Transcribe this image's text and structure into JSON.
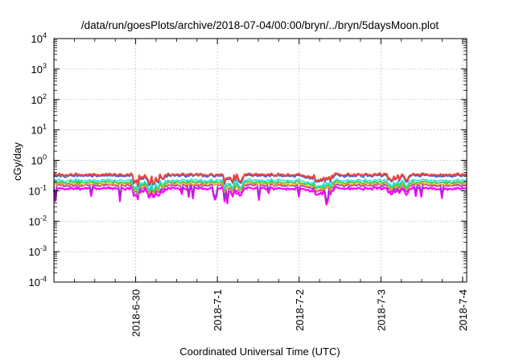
{
  "chart_data": {
    "type": "area",
    "title": "/data/run/goesPlots/archive/2018-07-04/00:00/bryn/../bryn/5daysMoon.plot",
    "xlabel": "Coordinated Universal Time (UTC)",
    "ylabel": "cGy/day",
    "yscale": "log",
    "ylim_exponents": [
      -4,
      4
    ],
    "ytick_exponents": [
      -4,
      -3,
      -2,
      -1,
      0,
      1,
      2,
      3,
      4
    ],
    "xlim_days": [
      -1.0,
      4.05
    ],
    "xticks": [
      {
        "day": 0,
        "label": "2018-6-30"
      },
      {
        "day": 1,
        "label": "2018-7-1"
      },
      {
        "day": 2,
        "label": "2018-7-2"
      },
      {
        "day": 3,
        "label": "2018-7-3"
      },
      {
        "day": 4,
        "label": "2018-7-4"
      }
    ],
    "grid": true,
    "legend": "none",
    "series": [
      {
        "color": "#e8463a",
        "base": 0.34
      },
      {
        "color": "#3a5bd8",
        "base": 0.31
      },
      {
        "color": "#2ee0e0",
        "base": 0.22
      },
      {
        "color": "#32cd32",
        "base": 0.19
      },
      {
        "color": "#ff9933",
        "base": 0.165
      },
      {
        "color": "#9933cc",
        "base": 0.15
      },
      {
        "color": "#ff00ff",
        "base": 0.12
      }
    ],
    "dips": [
      {
        "start": -0.03,
        "end": 0.36,
        "factor": 0.45
      },
      {
        "start": 1.08,
        "end": 1.32,
        "factor": 0.5
      },
      {
        "start": 2.04,
        "end": 2.42,
        "factor": 0.6
      },
      {
        "start": 3.08,
        "end": 3.35,
        "factor": 0.6
      }
    ],
    "range_sample_days": [
      -0.03,
      0.36,
      1.08,
      1.32,
      2.04,
      2.42,
      3.08,
      3.35
    ],
    "y_range_approx": [
      0.03,
      0.45
    ]
  }
}
